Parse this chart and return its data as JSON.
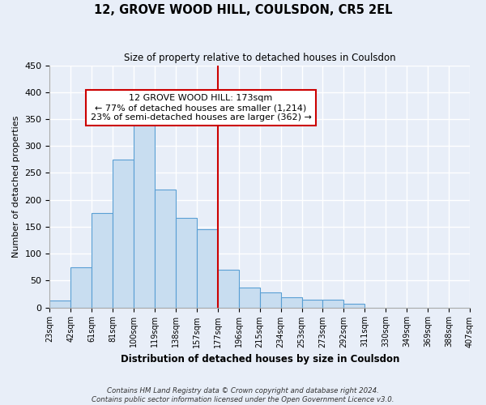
{
  "title": "12, GROVE WOOD HILL, COULSDON, CR5 2EL",
  "subtitle": "Size of property relative to detached houses in Coulsdon",
  "xlabel": "Distribution of detached houses by size in Coulsdon",
  "ylabel": "Number of detached properties",
  "bin_labels": [
    "23sqm",
    "42sqm",
    "61sqm",
    "81sqm",
    "100sqm",
    "119sqm",
    "138sqm",
    "157sqm",
    "177sqm",
    "196sqm",
    "215sqm",
    "234sqm",
    "253sqm",
    "273sqm",
    "292sqm",
    "311sqm",
    "330sqm",
    "349sqm",
    "369sqm",
    "388sqm",
    "407sqm"
  ],
  "bar_heights": [
    13,
    75,
    175,
    275,
    340,
    219,
    167,
    145,
    70,
    37,
    28,
    19,
    15,
    15,
    7,
    0,
    0,
    0,
    0,
    0
  ],
  "bar_color": "#c8ddf0",
  "bar_edge_color": "#5a9fd4",
  "vline_x": 8,
  "vline_color": "#cc0000",
  "annotation_title": "12 GROVE WOOD HILL: 173sqm",
  "annotation_line1": "← 77% of detached houses are smaller (1,214)",
  "annotation_line2": "23% of semi-detached houses are larger (362) →",
  "annotation_box_facecolor": "#ffffff",
  "annotation_box_edgecolor": "#cc0000",
  "ylim": [
    0,
    450
  ],
  "yticks": [
    0,
    50,
    100,
    150,
    200,
    250,
    300,
    350,
    400,
    450
  ],
  "footnote1": "Contains HM Land Registry data © Crown copyright and database right 2024.",
  "footnote2": "Contains public sector information licensed under the Open Government Licence v3.0.",
  "background_color": "#e8eef8",
  "plot_background": "#e8eef8",
  "grid_color": "#ffffff",
  "spine_color": "#aaaaaa"
}
